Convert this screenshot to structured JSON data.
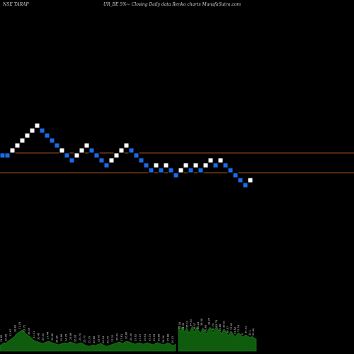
{
  "header": {
    "left": "NSE TARAP",
    "right": "UR_BE 5%~  Closing Daily data  Renko  charts MunafaSutra.com"
  },
  "colors": {
    "background": "#000000",
    "up_brick": "#ffffff",
    "down_brick": "#1a6be8",
    "reference_line": "#a0521e",
    "volume_fill": "#0f5c0f",
    "volume_edge": "#1c8a1c"
  },
  "chart_data": {
    "type": "renko",
    "title": "NSE TARAP UR_BE 5%~ Closing Daily data Renko charts MunafaSutra.com",
    "brick_size": "5%",
    "bricks": [
      {
        "level": 0,
        "dir": "down"
      },
      {
        "level": 0,
        "dir": "down"
      },
      {
        "level": 1,
        "dir": "up"
      },
      {
        "level": 2,
        "dir": "up"
      },
      {
        "level": 3,
        "dir": "up"
      },
      {
        "level": 4,
        "dir": "up"
      },
      {
        "level": 5,
        "dir": "up"
      },
      {
        "level": 6,
        "dir": "up"
      },
      {
        "level": 5,
        "dir": "down"
      },
      {
        "level": 4,
        "dir": "down"
      },
      {
        "level": 3,
        "dir": "down"
      },
      {
        "level": 2,
        "dir": "down"
      },
      {
        "level": 1,
        "dir": "up"
      },
      {
        "level": 0,
        "dir": "down"
      },
      {
        "level": -1,
        "dir": "down"
      },
      {
        "level": 0,
        "dir": "up"
      },
      {
        "level": 1,
        "dir": "up"
      },
      {
        "level": 2,
        "dir": "up"
      },
      {
        "level": 1,
        "dir": "down"
      },
      {
        "level": 0,
        "dir": "down"
      },
      {
        "level": -1,
        "dir": "down"
      },
      {
        "level": -2,
        "dir": "down"
      },
      {
        "level": -1,
        "dir": "up"
      },
      {
        "level": 0,
        "dir": "up"
      },
      {
        "level": 1,
        "dir": "up"
      },
      {
        "level": 2,
        "dir": "up"
      },
      {
        "level": 1,
        "dir": "down"
      },
      {
        "level": 0,
        "dir": "down"
      },
      {
        "level": -1,
        "dir": "down"
      },
      {
        "level": -2,
        "dir": "down"
      },
      {
        "level": -3,
        "dir": "down"
      },
      {
        "level": -2,
        "dir": "up"
      },
      {
        "level": -3,
        "dir": "down"
      },
      {
        "level": -2,
        "dir": "up"
      },
      {
        "level": -3,
        "dir": "down"
      },
      {
        "level": -4,
        "dir": "down"
      },
      {
        "level": -3,
        "dir": "up"
      },
      {
        "level": -2,
        "dir": "up"
      },
      {
        "level": -3,
        "dir": "down"
      },
      {
        "level": -2,
        "dir": "up"
      },
      {
        "level": -3,
        "dir": "down"
      },
      {
        "level": -2,
        "dir": "up"
      },
      {
        "level": -1,
        "dir": "up"
      },
      {
        "level": -2,
        "dir": "down"
      },
      {
        "level": -1,
        "dir": "up"
      },
      {
        "level": -2,
        "dir": "down"
      },
      {
        "level": -3,
        "dir": "down"
      },
      {
        "level": -4,
        "dir": "down"
      },
      {
        "level": -5,
        "dir": "down"
      },
      {
        "level": -6,
        "dir": "down"
      },
      {
        "level": -5,
        "dir": "up"
      }
    ],
    "reference_lines": [
      0.5,
      -3.5
    ],
    "volume": {
      "segments": [
        {
          "values": [
            8,
            10,
            12,
            11,
            14,
            16,
            18,
            20,
            24,
            26,
            28,
            30,
            27,
            24,
            22,
            20,
            17,
            15,
            14,
            13,
            12,
            11,
            12,
            13,
            14,
            13,
            12,
            11,
            10,
            9,
            10,
            11,
            12,
            11,
            12,
            13,
            12,
            11,
            10,
            11,
            12,
            11,
            9,
            8,
            7,
            8,
            9,
            8,
            9,
            10,
            11,
            9,
            8,
            7,
            8,
            9,
            10,
            11,
            12,
            13,
            12,
            11,
            13,
            14,
            13,
            12,
            11,
            10,
            11,
            12,
            11,
            10,
            11,
            12,
            11,
            10,
            9,
            11,
            12,
            11,
            10,
            9,
            10,
            12,
            11,
            9,
            8,
            10
          ],
          "labels": [
            "21.89",
            "25.95",
            "22.87",
            "28.81",
            "31.19",
            "32.71",
            "36.09",
            "33.01",
            "30.46",
            "29.30",
            "27.44",
            "26.88",
            "25.86",
            "25.86",
            "24.25",
            "25.86",
            "26.06",
            "25.74",
            "25.79",
            "25.79",
            "26.88",
            "25.00",
            "26.14",
            "25.79",
            "27.22",
            "26.52",
            "27.81",
            "26.86",
            "25.36",
            "29.62",
            "27.17",
            "25.61",
            "25.51",
            "25.05",
            "25.88",
            "26.06",
            "25.88",
            "26.03"
          ]
        },
        {
          "values": [
            36,
            30,
            28,
            34,
            31,
            27,
            29,
            33,
            30,
            26,
            28,
            32,
            35,
            29,
            27,
            31,
            34,
            30,
            28,
            25,
            29,
            33,
            30,
            27,
            24,
            28,
            31,
            34,
            32,
            29,
            26,
            30,
            33,
            35,
            31,
            28,
            27,
            25,
            28,
            31,
            30,
            27,
            24,
            22,
            25,
            28,
            27,
            24,
            22,
            21,
            23,
            25,
            26,
            24,
            22,
            21,
            20,
            22,
            23,
            22,
            21,
            20,
            19,
            21,
            20,
            19,
            18,
            17
          ],
          "labels": [
            "38.18",
            "34.36",
            "35.10",
            "34.52",
            "38.07",
            "40.24",
            "38.98",
            "36.83",
            "38.27",
            "37.74",
            "35.75",
            "36.88",
            "39.91",
            "38.67",
            "37.62",
            "35.62",
            "32.16",
            "6",
            "30.03",
            "30.1",
            "29.86"
          ]
        }
      ]
    }
  }
}
